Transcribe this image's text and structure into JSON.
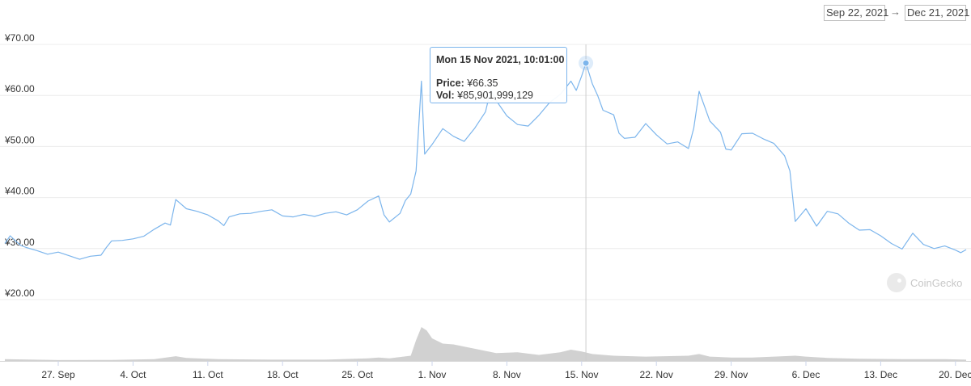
{
  "date_range": {
    "from": "Sep 22, 2021",
    "to": "Dec 21, 2021",
    "arrow": "→"
  },
  "tooltip": {
    "date": "Mon 15 Nov 2021, 10:01:00",
    "price_label": "Price:",
    "price_value": "¥66.35",
    "vol_label": "Vol:",
    "vol_value": "¥85,901,999,129"
  },
  "watermark": {
    "text": "CoinGecko"
  },
  "colors": {
    "line": "#7cb5ec",
    "volume": "#c9c9c9",
    "grid": "#ececec",
    "axis_text": "#333333"
  },
  "chart_data": {
    "type": "line",
    "title": "",
    "xlabel": "",
    "ylabel": "",
    "ylim": [
      20,
      70
    ],
    "y_ticks": [
      "¥70.00",
      "¥60.00",
      "¥50.00",
      "¥40.00",
      "¥30.00",
      "¥20.00"
    ],
    "y_tick_values": [
      70,
      60,
      50,
      40,
      30,
      20
    ],
    "x_range": [
      0,
      90
    ],
    "x_ticks": [
      {
        "day": 5,
        "label": "27. Sep"
      },
      {
        "day": 12,
        "label": "4. Oct"
      },
      {
        "day": 19,
        "label": "11. Oct"
      },
      {
        "day": 26,
        "label": "18. Oct"
      },
      {
        "day": 33,
        "label": "25. Oct"
      },
      {
        "day": 40,
        "label": "1. Nov"
      },
      {
        "day": 47,
        "label": "8. Nov"
      },
      {
        "day": 54,
        "label": "15. Nov"
      },
      {
        "day": 61,
        "label": "22. Nov"
      },
      {
        "day": 68,
        "label": "29. Nov"
      },
      {
        "day": 75,
        "label": "6. Dec"
      },
      {
        "day": 82,
        "label": "13. Dec"
      },
      {
        "day": 89,
        "label": "20. Dec"
      }
    ],
    "highlight_day": 54.4,
    "series": [
      {
        "values": [
          [
            0,
            31.0
          ],
          [
            0.5,
            32.5
          ],
          [
            1,
            31.5
          ],
          [
            1.5,
            30.6
          ],
          [
            2,
            30.2
          ],
          [
            3,
            29.6
          ],
          [
            4,
            28.9
          ],
          [
            5,
            29.3
          ],
          [
            6,
            28.6
          ],
          [
            7,
            27.9
          ],
          [
            8,
            28.5
          ],
          [
            9,
            28.7
          ],
          [
            9.5,
            30.2
          ],
          [
            10,
            31.5
          ],
          [
            11,
            31.6
          ],
          [
            12,
            31.9
          ],
          [
            13,
            32.4
          ],
          [
            14,
            33.8
          ],
          [
            15,
            35.0
          ],
          [
            15.5,
            34.6
          ],
          [
            16,
            39.6
          ],
          [
            17,
            37.8
          ],
          [
            18,
            37.3
          ],
          [
            19,
            36.6
          ],
          [
            20,
            35.4
          ],
          [
            20.5,
            34.5
          ],
          [
            21,
            36.2
          ],
          [
            22,
            36.8
          ],
          [
            23,
            36.9
          ],
          [
            24,
            37.3
          ],
          [
            25,
            37.6
          ],
          [
            26,
            36.4
          ],
          [
            27,
            36.2
          ],
          [
            28,
            36.7
          ],
          [
            29,
            36.3
          ],
          [
            30,
            36.9
          ],
          [
            31,
            37.2
          ],
          [
            32,
            36.6
          ],
          [
            33,
            37.6
          ],
          [
            34,
            39.3
          ],
          [
            35,
            40.3
          ],
          [
            35.5,
            36.6
          ],
          [
            36,
            35.2
          ],
          [
            37,
            36.9
          ],
          [
            37.5,
            39.4
          ],
          [
            38,
            40.7
          ],
          [
            38.5,
            45.2
          ],
          [
            39,
            62.8
          ],
          [
            39.3,
            48.5
          ],
          [
            40,
            50.4
          ],
          [
            41,
            53.5
          ],
          [
            42,
            52.0
          ],
          [
            43,
            51.0
          ],
          [
            44,
            53.6
          ],
          [
            45,
            56.8
          ],
          [
            45.5,
            61.2
          ],
          [
            46,
            59.0
          ],
          [
            47,
            56.0
          ],
          [
            48,
            54.3
          ],
          [
            49,
            54.0
          ],
          [
            50,
            56.1
          ],
          [
            51,
            58.6
          ],
          [
            52,
            60.2
          ],
          [
            53,
            62.8
          ],
          [
            53.5,
            61.0
          ],
          [
            54,
            63.8
          ],
          [
            54.4,
            66.35
          ],
          [
            55,
            62.3
          ],
          [
            55.5,
            60.0
          ],
          [
            56,
            57.1
          ],
          [
            57,
            56.2
          ],
          [
            57.5,
            52.6
          ],
          [
            58,
            51.6
          ],
          [
            59,
            51.8
          ],
          [
            60,
            54.5
          ],
          [
            61,
            52.3
          ],
          [
            62,
            50.5
          ],
          [
            63,
            50.9
          ],
          [
            64,
            49.6
          ],
          [
            64.5,
            53.6
          ],
          [
            65,
            60.8
          ],
          [
            66,
            55.0
          ],
          [
            67,
            52.8
          ],
          [
            67.5,
            49.5
          ],
          [
            68,
            49.3
          ],
          [
            69,
            52.5
          ],
          [
            70,
            52.6
          ],
          [
            71,
            51.5
          ],
          [
            72,
            50.6
          ],
          [
            73,
            48.2
          ],
          [
            73.5,
            45.2
          ],
          [
            74,
            35.3
          ],
          [
            75,
            37.8
          ],
          [
            76,
            34.4
          ],
          [
            77,
            37.3
          ],
          [
            78,
            36.8
          ],
          [
            79,
            35.0
          ],
          [
            80,
            33.6
          ],
          [
            81,
            33.7
          ],
          [
            82,
            32.5
          ],
          [
            83,
            31.0
          ],
          [
            84,
            29.9
          ],
          [
            85,
            33.0
          ],
          [
            86,
            30.8
          ],
          [
            87,
            30.0
          ],
          [
            88,
            30.5
          ],
          [
            89,
            29.7
          ],
          [
            89.5,
            29.2
          ],
          [
            90,
            29.8
          ]
        ]
      }
    ],
    "volume_note": "volume bars shown without axis; relative heights read from chart",
    "volume": [
      [
        0,
        0.2
      ],
      [
        5,
        0.1
      ],
      [
        10,
        0.12
      ],
      [
        14,
        0.2
      ],
      [
        16,
        0.55
      ],
      [
        17,
        0.35
      ],
      [
        20,
        0.2
      ],
      [
        25,
        0.15
      ],
      [
        30,
        0.15
      ],
      [
        34,
        0.3
      ],
      [
        35,
        0.4
      ],
      [
        36,
        0.3
      ],
      [
        38,
        0.6
      ],
      [
        38.5,
        2.4
      ],
      [
        39,
        3.9
      ],
      [
        39.5,
        3.5
      ],
      [
        40,
        2.6
      ],
      [
        41,
        2.0
      ],
      [
        42,
        1.9
      ],
      [
        44,
        1.4
      ],
      [
        46,
        0.9
      ],
      [
        48,
        1.0
      ],
      [
        50,
        0.7
      ],
      [
        52,
        1.0
      ],
      [
        53,
        1.3
      ],
      [
        54,
        1.1
      ],
      [
        55,
        0.8
      ],
      [
        57,
        0.6
      ],
      [
        60,
        0.5
      ],
      [
        64,
        0.6
      ],
      [
        65,
        0.8
      ],
      [
        66,
        0.5
      ],
      [
        68,
        0.4
      ],
      [
        70,
        0.4
      ],
      [
        74,
        0.6
      ],
      [
        75,
        0.5
      ],
      [
        77,
        0.35
      ],
      [
        80,
        0.25
      ],
      [
        84,
        0.2
      ],
      [
        88,
        0.2
      ],
      [
        90,
        0.15
      ]
    ],
    "grid": true,
    "legend": "none"
  }
}
